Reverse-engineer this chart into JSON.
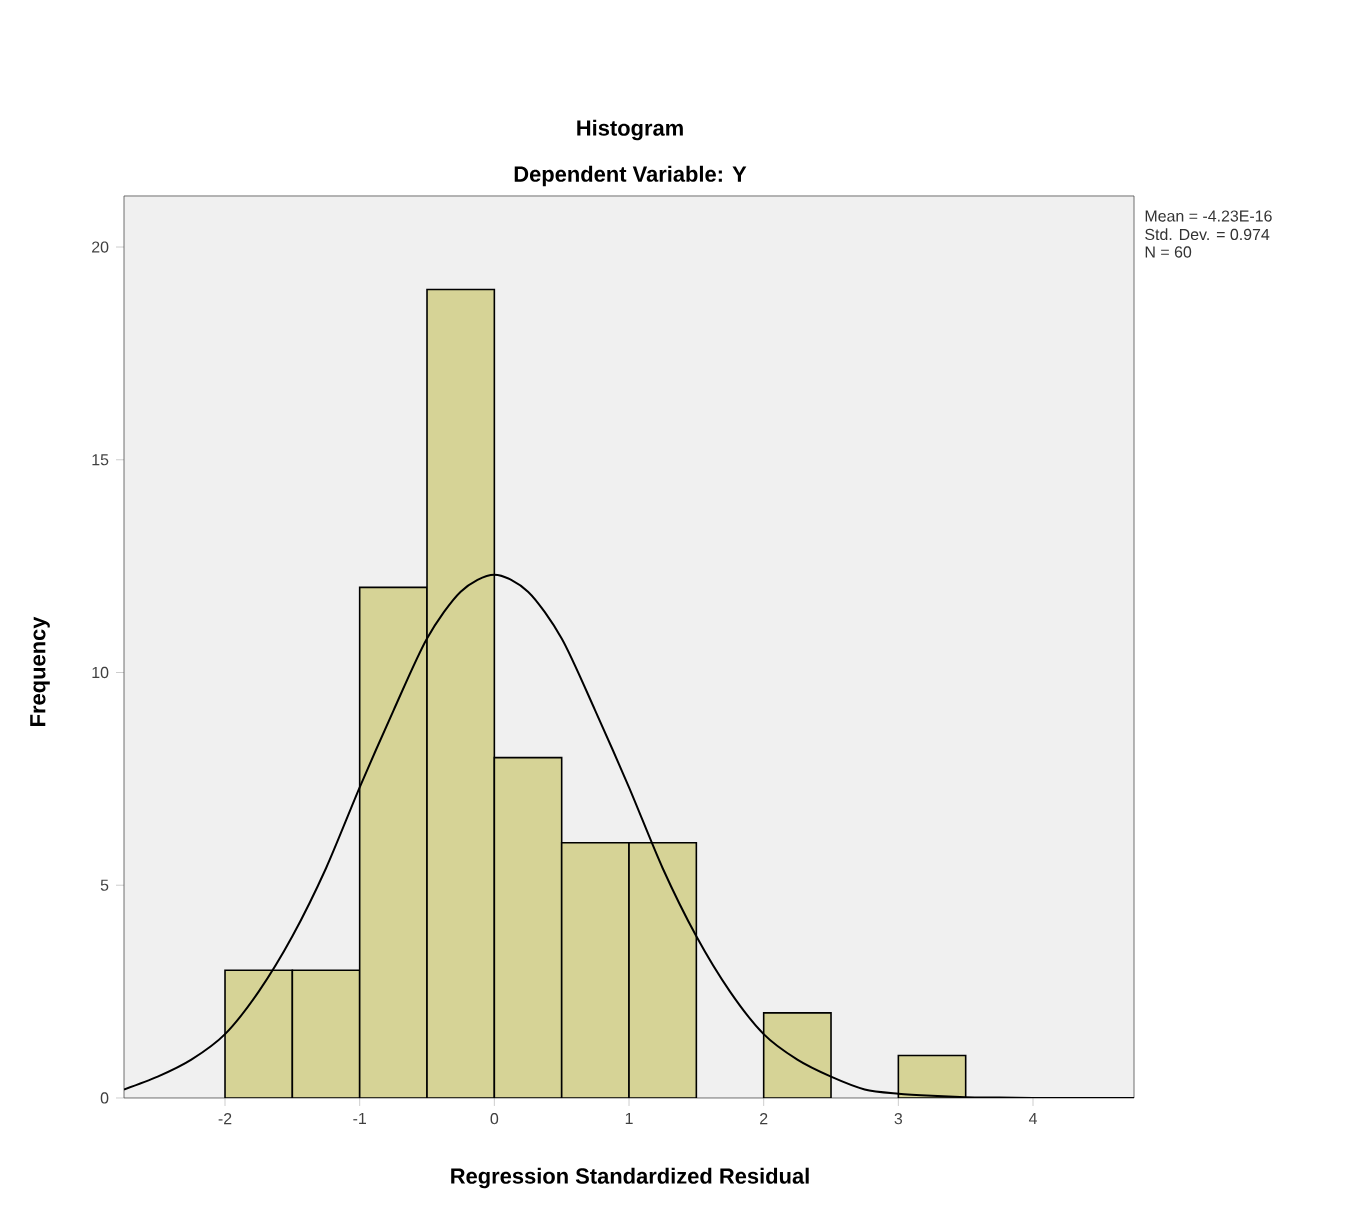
{
  "chart_data": {
    "type": "histogram",
    "title": "Histogram",
    "subtitle": "Dependent Variable: Y",
    "xlabel": "Regression Standardized Residual",
    "ylabel": "Frequency",
    "annotations": [
      "Mean = -4.23E-16",
      "Std. Dev. = 0.974",
      "N = 60"
    ],
    "xlim": [
      -2.75,
      4.75
    ],
    "ylim": [
      0,
      21.2
    ],
    "xticks": [
      -2,
      -1,
      0,
      1,
      2,
      3,
      4
    ],
    "yticks": [
      0,
      5,
      10,
      15,
      20
    ],
    "grid": false,
    "series": [
      {
        "type": "histogram",
        "color": "#d6d396",
        "bins": [
          -2,
          -1.5,
          -1,
          -0.5,
          0,
          0.5,
          1,
          1.5,
          2,
          2.5,
          3,
          3.5
        ],
        "values": [
          3,
          3,
          12,
          19,
          8,
          6,
          6,
          0,
          2,
          0,
          1
        ]
      },
      {
        "type": "line",
        "color": "#000000",
        "x": [
          -2.75,
          -2.5,
          -2.25,
          -2,
          -1.75,
          -1.5,
          -1.25,
          -1,
          -0.75,
          -0.5,
          -0.25,
          0,
          0.25,
          0.5,
          0.75,
          1,
          1.25,
          1.5,
          1.75,
          2,
          2.25,
          2.5,
          2.75,
          3,
          3.25,
          3.5,
          3.75,
          4,
          4.25,
          4.5,
          4.75
        ],
        "values": [
          0.2,
          0.5,
          0.9,
          1.5,
          2.5,
          3.8,
          5.4,
          7.3,
          9.1,
          10.8,
          11.9,
          12.3,
          11.9,
          10.8,
          9.1,
          7.3,
          5.4,
          3.8,
          2.5,
          1.5,
          0.9,
          0.5,
          0.2,
          0.1,
          0.05,
          0.02,
          0.01,
          0,
          0,
          0,
          0
        ]
      }
    ]
  }
}
